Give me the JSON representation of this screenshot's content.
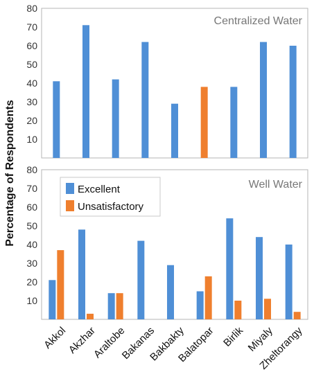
{
  "ylabel": "Percentage of Respondents",
  "colors": {
    "excellent": "#4f8fd6",
    "unsatisfactory": "#ef7f2e"
  },
  "chart_data": [
    {
      "type": "bar",
      "title": "Centralized Water",
      "categories": [
        "Akkol",
        "Akzhar",
        "Araltobe",
        "Bakanas",
        "Bakbakty",
        "Balatopar",
        "Birlik",
        "Miyaly",
        "Zheltorangy"
      ],
      "ylim": [
        0,
        80
      ],
      "yticks": [
        10,
        20,
        30,
        40,
        50,
        60,
        70,
        80
      ],
      "series": [
        {
          "key": "excellent",
          "values": [
            41,
            71,
            42,
            62,
            29,
            null,
            38,
            62,
            60
          ]
        },
        {
          "key": "unsatisfactory",
          "values": [
            null,
            null,
            null,
            null,
            null,
            38,
            null,
            null,
            null
          ]
        }
      ]
    },
    {
      "type": "bar",
      "title": "Well Water",
      "categories": [
        "Akkol",
        "Akzhar",
        "Araltobe",
        "Bakanas",
        "Bakbakty",
        "Balatopar",
        "Birlik",
        "Miyaly",
        "Zheltorangy"
      ],
      "ylim": [
        0,
        80
      ],
      "yticks": [
        10,
        20,
        30,
        40,
        50,
        60,
        70,
        80
      ],
      "legend": "top-left",
      "series": [
        {
          "key": "excellent",
          "name": "Excellent",
          "values": [
            21,
            48,
            14,
            42,
            29,
            15,
            54,
            44,
            40
          ]
        },
        {
          "key": "unsatisfactory",
          "name": "Unsatisfactory",
          "values": [
            37,
            3,
            14,
            null,
            null,
            23,
            10,
            11,
            4
          ]
        }
      ]
    }
  ]
}
